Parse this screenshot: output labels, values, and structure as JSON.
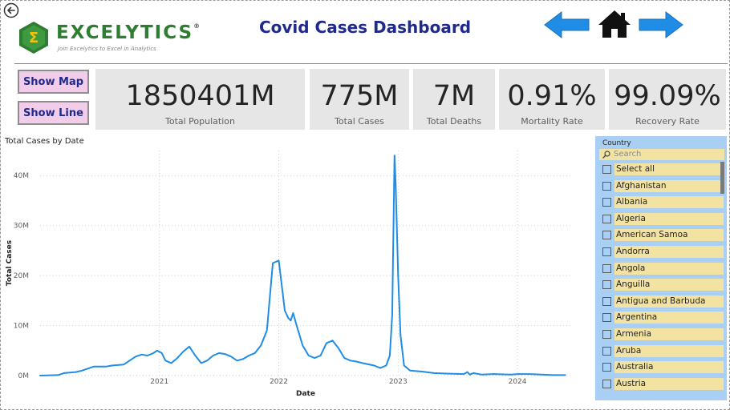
{
  "header": {
    "title": "Covid Cases Dashboard",
    "logo_text": "EXCELYTICS",
    "logo_reg": "®",
    "logo_tagline": "Join Excelytics to Excel in Analytics",
    "back_icon": "back-circle-arrow-icon",
    "nav_icons": [
      "left-arrow-icon",
      "home-icon",
      "right-arrow-icon"
    ],
    "accent_color": "#1f8de6",
    "brand_color": "#2e7d32",
    "title_color": "#1f2a8c",
    "divider_color": "#d957b4"
  },
  "buttons": {
    "show_map": "Show Map",
    "show_line": "Show Line"
  },
  "cards": [
    {
      "value": "1850401M",
      "label": "Total Population"
    },
    {
      "value": "775M",
      "label": "Total Cases"
    },
    {
      "value": "7M",
      "label": "Total Deaths"
    },
    {
      "value": "0.91%",
      "label": "Mortality Rate"
    },
    {
      "value": "99.09%",
      "label": "Recovery Rate"
    }
  ],
  "chart_data": {
    "type": "line",
    "title": "Total Cases by Date",
    "xlabel": "Date",
    "ylabel": "Total Cases",
    "ylim": [
      0,
      45
    ],
    "xlim": [
      2020.0,
      2024.45
    ],
    "y_ticks": [
      0,
      10,
      20,
      30,
      40
    ],
    "y_tick_labels": [
      "0M",
      "10M",
      "20M",
      "30M",
      "40M"
    ],
    "x_ticks": [
      2021,
      2022,
      2023,
      2024
    ],
    "x_tick_labels": [
      "2021",
      "2022",
      "2023",
      "2024"
    ],
    "grid": true,
    "line_color": "#1f8de6",
    "x": [
      2020.0,
      2020.15,
      2020.2,
      2020.3,
      2020.35,
      2020.45,
      2020.55,
      2020.6,
      2020.7,
      2020.8,
      2020.85,
      2020.9,
      2020.95,
      2020.98,
      2021.02,
      2021.05,
      2021.1,
      2021.15,
      2021.2,
      2021.25,
      2021.3,
      2021.35,
      2021.4,
      2021.45,
      2021.5,
      2021.55,
      2021.6,
      2021.65,
      2021.7,
      2021.75,
      2021.8,
      2021.85,
      2021.9,
      2021.95,
      2022.0,
      2022.03,
      2022.05,
      2022.08,
      2022.1,
      2022.12,
      2022.15,
      2022.2,
      2022.25,
      2022.3,
      2022.35,
      2022.4,
      2022.45,
      2022.5,
      2022.55,
      2022.6,
      2022.65,
      2022.7,
      2022.8,
      2022.85,
      2022.9,
      2022.93,
      2022.95,
      2022.97,
      2022.98,
      2023.0,
      2023.02,
      2023.05,
      2023.1,
      2023.2,
      2023.3,
      2023.4,
      2023.55,
      2023.58,
      2023.6,
      2023.63,
      2023.7,
      2023.8,
      2023.95,
      2024.0,
      2024.1,
      2024.2,
      2024.3,
      2024.4
    ],
    "values": [
      0.0,
      0.1,
      0.5,
      0.7,
      1.0,
      1.8,
      1.8,
      2.0,
      2.2,
      3.8,
      4.2,
      4.0,
      4.5,
      5.0,
      4.5,
      3.0,
      2.5,
      3.5,
      4.8,
      5.8,
      4.0,
      2.5,
      3.0,
      4.0,
      4.5,
      4.3,
      3.8,
      3.0,
      3.3,
      4.0,
      4.5,
      6.0,
      9.0,
      22.5,
      23.0,
      17.0,
      13.0,
      11.5,
      11.0,
      12.5,
      10.0,
      6.0,
      4.0,
      3.5,
      4.0,
      6.5,
      7.0,
      5.5,
      3.5,
      3.0,
      2.8,
      2.5,
      2.0,
      1.5,
      2.0,
      4.0,
      12.0,
      44.0,
      38.0,
      20.0,
      8.0,
      2.0,
      1.0,
      0.8,
      0.5,
      0.4,
      0.3,
      0.7,
      0.2,
      0.5,
      0.2,
      0.3,
      0.2,
      0.3,
      0.3,
      0.2,
      0.1,
      0.1
    ]
  },
  "slicer": {
    "title": "Country",
    "search_placeholder": "Search",
    "items": [
      "Select all",
      "Afghanistan",
      "Albania",
      "Algeria",
      "American Samoa",
      "Andorra",
      "Angola",
      "Anguilla",
      "Antigua and Barbuda",
      "Argentina",
      "Armenia",
      "Aruba",
      "Australia",
      "Austria"
    ],
    "background_color": "#a9cff5",
    "item_color": "#f2e3a2"
  }
}
